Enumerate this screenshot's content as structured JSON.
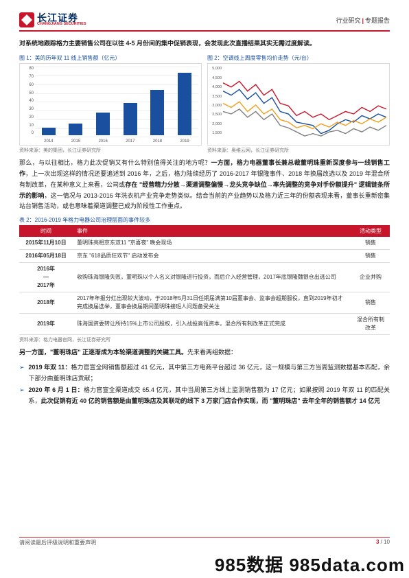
{
  "header": {
    "logo_cn": "长江证券",
    "logo_en": "CHANGJIANG SECURITIES",
    "right_a": "行业研究",
    "right_b": "专题报告"
  },
  "intro": "对系统地跟踪格力主要销售公司在以往 4-5 月份间的集中促销表现，会发现此次直播结果其实无需过度解读。",
  "fig1": {
    "title": "图 1：美的历年双 11 线上销售额（亿元）",
    "y_ticks": [
      "0",
      "10",
      "20",
      "30",
      "40",
      "50",
      "60",
      "70",
      "80"
    ],
    "x_labels": [
      "2014",
      "2015",
      "2016",
      "2017",
      "2018",
      "2019"
    ],
    "values": [
      9,
      14,
      27,
      38,
      53,
      73
    ],
    "ymax": 80,
    "bar_color": "#1a4fa0",
    "source": "资料来源：美的集团，长江证券研究所"
  },
  "fig2": {
    "title": "图 2：空调线上周度零售均价走势（元/台）",
    "y_ticks": [
      "1,500",
      "2,000",
      "2,500",
      "3,000",
      "3,500",
      "4,000",
      "4,500",
      "5,000"
    ],
    "series_colors": [
      "#c7162b",
      "#1a4fa0",
      "#f0a020",
      "#808080"
    ],
    "source": "资料来源：奥维云网，长江证券研究所"
  },
  "para2": "那么，与以往相比，格力此次促销又有什么特别值得关注的地方呢？<b>一方面，格力电器董事长兼总裁董明珠重新深度参与一线销售工作</b>，上一次出现这样的情况还要追述到 2016 年，之后，格力陆续经历了 2016-2017 年银隆事件、2018 年换届改选以及 2019 年混合所有制改革，在某种意义上来看，公司或<b>存在 \"经营精力分散→渠道调整偏慢→龙头竞争缺位→率先调整的竞争对手份额提升\" 逻辑链条所示的影响</b>，这一情况与 2013-2016 年洗衣机产业竞争走势类似。结合当前的产业趋势以及格力近三年的份额表现来看，董事长重新密集站台销售活动，或也意味着渠道调整已成为阶段性工作重点。",
  "table": {
    "title": "表 2：2016-2019 年格力电器公司治理层面的事件较多",
    "headers": [
      "时间",
      "事件",
      "活动类型"
    ],
    "rows": [
      {
        "t": "2015年11月10日",
        "e": "董明珠亮相京东双11 \"京喜夜\" 晚会现场",
        "k": "销售"
      },
      {
        "t": "2016年05月18日",
        "e": "京东 \"618品质狂欢节\" 启动发布会",
        "k": "销售"
      },
      {
        "t": "2016年 — 2017年",
        "e": "收购珠海银隆失败，董明珠以个人名义对银隆进行投资，而后介入经营管理，2017年底银隆魏银仓出逃公司",
        "k": "企业并购"
      },
      {
        "t": "2018年",
        "e": "2017年年报分红出现较大波动，于2018年5月31日任期届满第10届董事会、监事会超期服役，直到2019年初才完成换届选举，董事会换届期间董明珠接班人问题备受关注",
        "k": "销售"
      },
      {
        "t": "2019年",
        "e": "珠海国资委转让所持15%上市公司股权，引入战投高瓴资本，混合所有制改革正式完成",
        "k": "混合所有制改革"
      }
    ],
    "source": "资料来源：格力电器官网，长江证券研究所"
  },
  "para3": "<b>另一方面，\"董明珠店\" 正逐渐成为本轮渠道调整的关键工具。</b>先来看两组数据：",
  "bullets": [
    "<b>2019 年双 11：</b>格力官宣全网销售额超过 41 亿元，其中第三方电商平台超过 36 亿元，这一规模与第三方当周监测数据基本匹配，余下部分由董明珠店贡献；",
    "<b>2020 年 6 月 1 日：</b>格力官宣全渠道成交 65.4 亿元，其中当周第三方线上监测销售额为 17 亿元；如果按照 2019 年双 11 的匹配关系，<b>此次促销有近 40 亿的销售额是由董明珠店及其联动的线下 3 万家门店合作实现，而 \"董明珠店\" 去年全年的销售额才 14 亿元</b>"
  ],
  "footer": {
    "left": "请阅读最后评级说明和重要声明",
    "cur": "3",
    "total": "10"
  },
  "watermark": "985数据 985data.com"
}
